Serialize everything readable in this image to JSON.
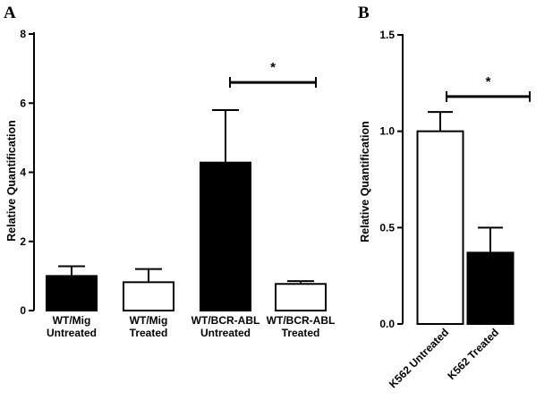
{
  "chart_data": [
    {
      "panel": "A",
      "type": "bar",
      "ylabel": "Relative Quantification",
      "ylim": [
        0,
        8
      ],
      "yticks": [
        "0",
        "2",
        "4",
        "6",
        "8"
      ],
      "categories": [
        [
          "WT/Mig",
          "Untreated"
        ],
        [
          "WT/Mig",
          "Treated"
        ],
        [
          "WT/BCR-ABL",
          "Untreated"
        ],
        [
          "WT/BCR-ABL",
          "Treated"
        ]
      ],
      "values": [
        1.0,
        0.82,
        4.28,
        0.77
      ],
      "errors": [
        0.28,
        0.38,
        1.52,
        0.08
      ],
      "fills": [
        "#000000",
        "#ffffff",
        "#000000",
        "#ffffff"
      ],
      "significance": {
        "between": [
          2,
          3
        ],
        "y": 6.6,
        "label": "*"
      }
    },
    {
      "panel": "B",
      "type": "bar",
      "ylabel": "Relative Quantification",
      "ylim": [
        0,
        1.5
      ],
      "yticks": [
        "0.0",
        "0.5",
        "1.0",
        "1.5"
      ],
      "categories": [
        "K562 Untreated",
        "K562 Treated"
      ],
      "values": [
        1.0,
        0.37
      ],
      "errors": [
        0.1,
        0.13
      ],
      "fills": [
        "#ffffff",
        "#000000"
      ],
      "significance": {
        "between": [
          0,
          1
        ],
        "y": 1.18,
        "label": "*"
      }
    }
  ]
}
